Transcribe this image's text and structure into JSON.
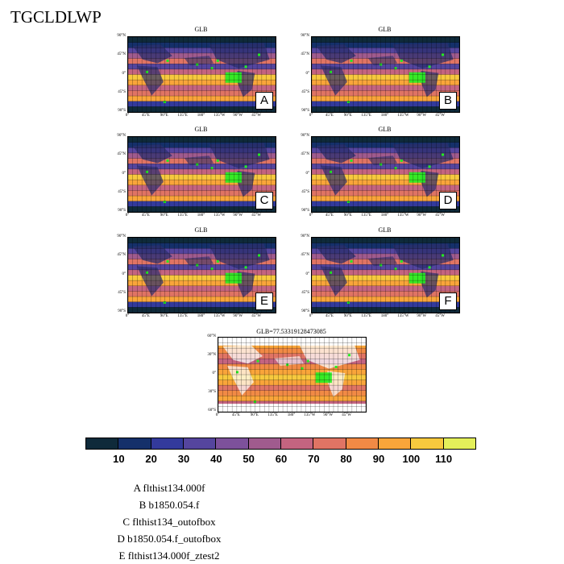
{
  "page_title": "TGCLDLWP",
  "panels": [
    {
      "id": "A",
      "title": "GLB"
    },
    {
      "id": "B",
      "title": "GLB"
    },
    {
      "id": "C",
      "title": "GLB"
    },
    {
      "id": "D",
      "title": "GLB"
    },
    {
      "id": "E",
      "title": "GLB"
    },
    {
      "id": "F",
      "title": "GLB"
    }
  ],
  "diff_panel": {
    "title": "GLB=77.53319128473085"
  },
  "lat_labels": [
    "90°N",
    "45°N",
    "0°",
    "45°S",
    "90°S"
  ],
  "lat_labels_diff": [
    "60°N",
    "30°N",
    "0°",
    "30°S",
    "60°S"
  ],
  "lon_labels": [
    "0°",
    "45°E",
    "90°E",
    "135°E",
    "180°",
    "135°W",
    "90°W",
    "45°W"
  ],
  "colorbar": {
    "labels": [
      "10",
      "20",
      "30",
      "40",
      "50",
      "60",
      "70",
      "80",
      "90",
      "100",
      "110"
    ],
    "colors": [
      "#0f2a3a",
      "#15306a",
      "#333a9c",
      "#55459e",
      "#7d519b",
      "#a05b8e",
      "#c46480",
      "#e07464",
      "#f18a45",
      "#f9a53a",
      "#f7c93e",
      "#e4f05a"
    ]
  },
  "legend": [
    "A  flthist134.000f",
    "B  b1850.054.f",
    "C  flthist134_outofbox",
    "D  b1850.054.f_outofbox",
    "E  flthist134.000f_ztest2"
  ]
}
